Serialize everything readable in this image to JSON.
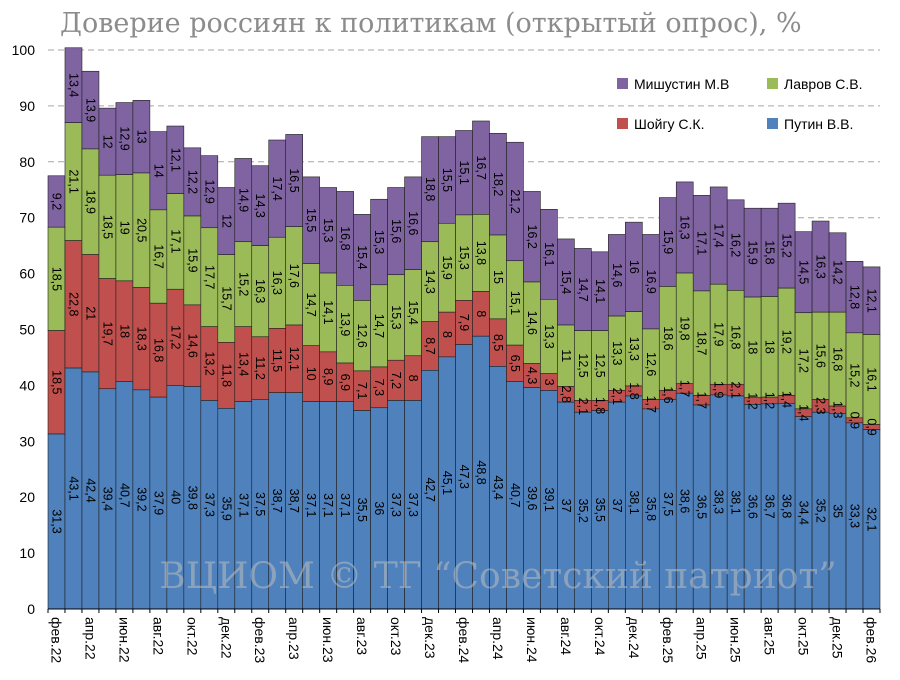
{
  "chart_data": {
    "type": "bar",
    "stacked": true,
    "title": "Доверие россиян к политикам (открытый опрос), %",
    "watermark": "ВЦИОМ © ТГ “Советский патриот”",
    "ylim": [
      0,
      100
    ],
    "yticks": [
      "0",
      "10",
      "20",
      "30",
      "40",
      "50",
      "60",
      "70",
      "80",
      "90",
      "100"
    ],
    "grid": true,
    "legend_position": "top-right",
    "tick_labels": [
      "фев.22",
      "апр.22",
      "июн.22",
      "авг.22",
      "окт.22",
      "дек.22",
      "фев.23",
      "апр.23",
      "июн.23",
      "авг.23",
      "окт.23",
      "дек.23",
      "фев.24",
      "апр.24",
      "июн.24",
      "авг.24",
      "окт.24",
      "дек.24",
      "фев.25",
      "апр.25",
      "июн.25",
      "авг.25",
      "окт.25",
      "дек.25",
      "фев.26"
    ],
    "n_bars": 49,
    "series": [
      {
        "name": "Путин В.В.",
        "color": "#4f81bd",
        "values": [
          31.3,
          43.1,
          42.4,
          39.4,
          40.7,
          39.2,
          37.9,
          40,
          39.8,
          37.3,
          35.9,
          37.1,
          37.5,
          38.7,
          38.7,
          37.1,
          37.1,
          37.1,
          35.5,
          36,
          37.3,
          37.3,
          42.7,
          45.1,
          47.3,
          48.8,
          43.4,
          40.7,
          39.6,
          39.1,
          37,
          35.2,
          35.5,
          37,
          38.1,
          35.8,
          37.5,
          38.6,
          36.5,
          38.3,
          38.1,
          36.6,
          36.7,
          36.8,
          34.4,
          35.2,
          35,
          33.3,
          32.1
        ]
      },
      {
        "name": "Шойгу С.К.",
        "color": "#c0504d",
        "values": [
          18.5,
          22.8,
          21,
          19.7,
          18,
          18.3,
          16.8,
          17.2,
          14.6,
          13.2,
          11.8,
          13.4,
          11.2,
          11.5,
          12.1,
          10,
          8.9,
          6.9,
          7.1,
          7.3,
          7.2,
          8,
          8.7,
          8,
          7.9,
          8,
          8.5,
          6.5,
          4.3,
          3,
          2.8,
          2.1,
          1.8,
          2.1,
          1.8,
          1.7,
          1.6,
          1.7,
          1.7,
          1.9,
          2.1,
          1.2,
          1.2,
          1.4,
          1.4,
          2.3,
          1.3,
          0.9,
          0.9
        ]
      },
      {
        "name": "Лавров С.В.",
        "color": "#9bbb59",
        "values": [
          18.5,
          21.1,
          18.9,
          18.5,
          19,
          20.5,
          16.7,
          17.1,
          15.9,
          17.7,
          15.7,
          15.2,
          16.3,
          16.3,
          17.6,
          14.7,
          14.1,
          13.9,
          12.6,
          14.7,
          15.3,
          15.4,
          14.3,
          15.9,
          15.3,
          13.8,
          15,
          15.1,
          14.6,
          13.3,
          11,
          12.5,
          12.5,
          13.3,
          13.3,
          12.6,
          18.6,
          19.8,
          18.7,
          17.9,
          16.8,
          18,
          18,
          19.2,
          17.2,
          15.6,
          16.8,
          15.2,
          16.1
        ]
      },
      {
        "name": "Мишустин М.В",
        "color": "#8064a2",
        "values": [
          9.2,
          13.4,
          13.9,
          12,
          12.9,
          13,
          14,
          12.1,
          12.2,
          12.9,
          12,
          14.9,
          14.3,
          17.4,
          16.5,
          15.5,
          15.3,
          16.8,
          15.4,
          15.3,
          15.6,
          16.6,
          18.8,
          15.5,
          15.1,
          16.7,
          18.2,
          21.2,
          16.2,
          16.1,
          15.4,
          14.7,
          14.1,
          14.6,
          16,
          16.9,
          15.9,
          16.3,
          17.1,
          17.4,
          16.2,
          15.9,
          15.8,
          15.2,
          14.5,
          16.3,
          14.2,
          12.8,
          12.1
        ]
      }
    ],
    "legend_order": [
      3,
      2,
      1,
      0
    ]
  }
}
